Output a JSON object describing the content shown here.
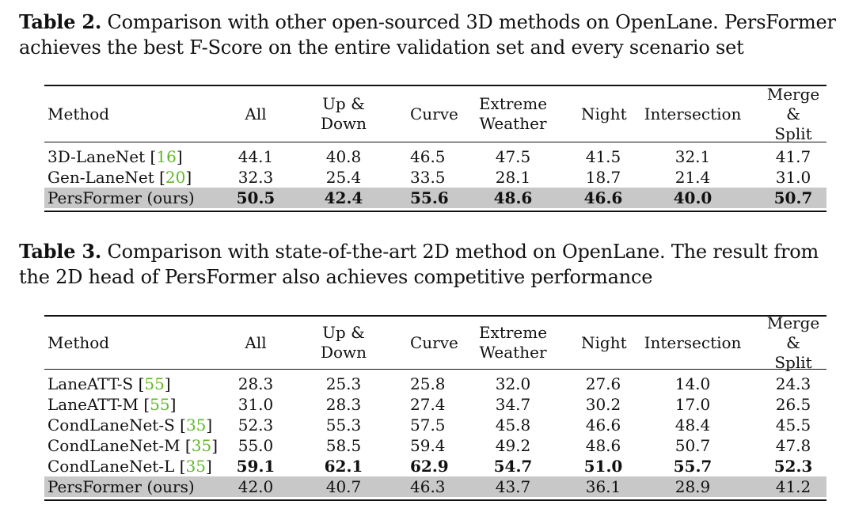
{
  "table2": {
    "caption_label": "Table 2.",
    "caption_text_line1": " Comparison with other open-sourced 3D methods on OpenLane. PersFormer",
    "caption_text_line2": "achieves the best F-Score on the entire validation set and every scenario set",
    "headers": {
      "method": "Method",
      "all": "All",
      "updown_1": "Up &",
      "updown_2": "Down",
      "curve": "Curve",
      "extreme_1": "Extreme",
      "extreme_2": "Weather",
      "night": "Night",
      "intersection": "Intersection",
      "merge_1": "Merge &",
      "merge_2": "Split"
    },
    "rows": [
      {
        "method": "3D-LaneNet ",
        "ref_open": "[",
        "ref": "16",
        "ref_close": "]",
        "all": "44.1",
        "updown": "40.8",
        "curve": "46.5",
        "extreme": "47.5",
        "night": "41.5",
        "intersection": "32.1",
        "merge": "41.7"
      },
      {
        "method": "Gen-LaneNet ",
        "ref_open": "[",
        "ref": "20",
        "ref_close": "]",
        "all": "32.3",
        "updown": "25.4",
        "curve": "33.5",
        "extreme": "28.1",
        "night": "18.7",
        "intersection": "21.4",
        "merge": "31.0"
      },
      {
        "method": "PersFormer (ours)",
        "all": "50.5",
        "updown": "42.4",
        "curve": "55.6",
        "extreme": "48.6",
        "night": "46.6",
        "intersection": "40.0",
        "merge": "50.7"
      }
    ]
  },
  "table3": {
    "caption_label": "Table 3.",
    "caption_text_line1": " Comparison with state-of-the-art 2D method on OpenLane. The result from",
    "caption_text_line2": "the 2D head of PersFormer also achieves competitive performance",
    "rows": [
      {
        "method": "LaneATT-S ",
        "ref_open": "[",
        "ref": "55",
        "ref_close": "]",
        "all": "28.3",
        "updown": "25.3",
        "curve": "25.8",
        "extreme": "32.0",
        "night": "27.6",
        "intersection": "14.0",
        "merge": "24.3"
      },
      {
        "method": "LaneATT-M ",
        "ref_open": "[",
        "ref": "55",
        "ref_close": "]",
        "all": "31.0",
        "updown": "28.3",
        "curve": "27.4",
        "extreme": "34.7",
        "night": "30.2",
        "intersection": "17.0",
        "merge": "26.5"
      },
      {
        "method": "CondLaneNet-S ",
        "ref_open": "[",
        "ref": "35",
        "ref_close": "]",
        "all": "52.3",
        "updown": "55.3",
        "curve": "57.5",
        "extreme": "45.8",
        "night": "46.6",
        "intersection": "48.4",
        "merge": "45.5"
      },
      {
        "method": "CondLaneNet-M ",
        "ref_open": "[",
        "ref": "35",
        "ref_close": "]",
        "all": "55.0",
        "updown": "58.5",
        "curve": "59.4",
        "extreme": "49.2",
        "night": "48.6",
        "intersection": "50.7",
        "merge": "47.8"
      },
      {
        "method": "CondLaneNet-L ",
        "ref_open": "[",
        "ref": "35",
        "ref_close": "]",
        "all": "59.1",
        "updown": "62.1",
        "curve": "62.9",
        "extreme": "54.7",
        "night": "51.0",
        "intersection": "55.7",
        "merge": "52.3"
      },
      {
        "method": "PersFormer (ours)",
        "all": "42.0",
        "updown": "40.7",
        "curve": "46.3",
        "extreme": "43.7",
        "night": "36.1",
        "intersection": "28.9",
        "merge": "41.2"
      }
    ]
  },
  "colors": {
    "ref_link": "#5fb82a",
    "highlight_row": "#c8c8c8"
  }
}
